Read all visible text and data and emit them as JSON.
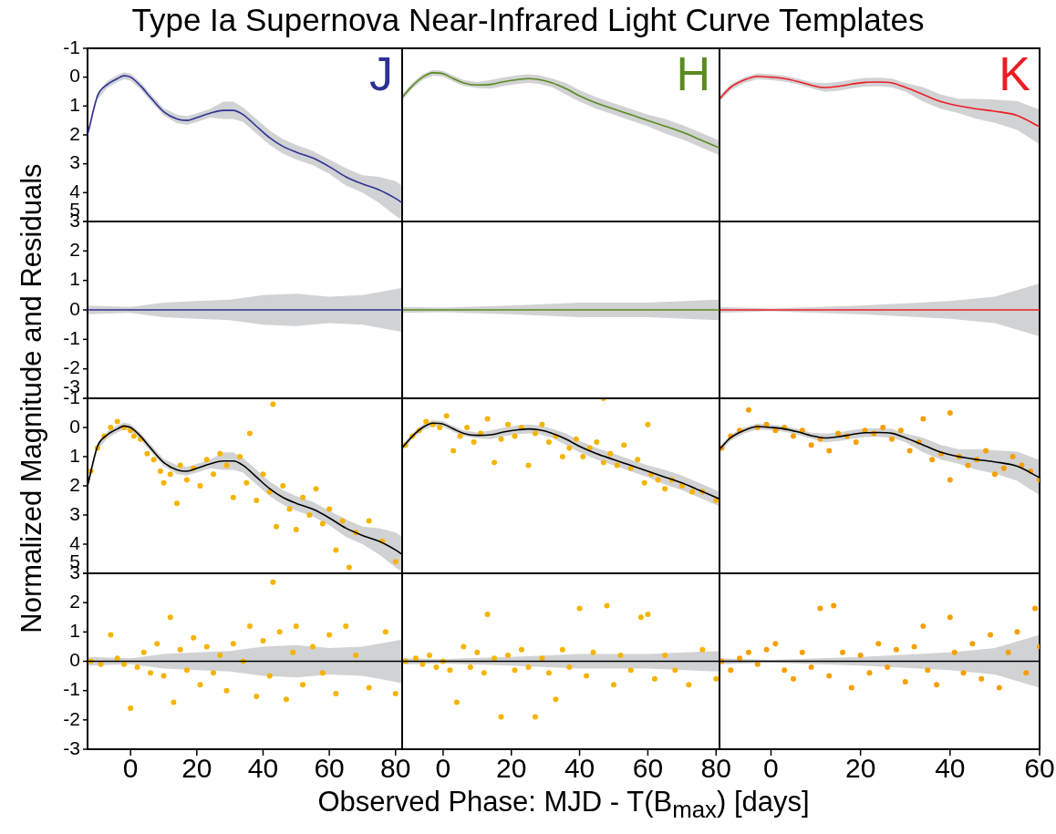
{
  "chart_data": [
    {
      "type": "line",
      "title": "Type Ia Supernova Near-Infrared Light Curve Templates",
      "xlabel": "Observed Phase: MJD - T(B$_{max}$) [days]",
      "ylabel": "Normalized Magnitude and Residuals",
      "xlim": [
        -13,
        82
      ],
      "ylim": [
        5,
        -1
      ],
      "xticks": [
        0,
        20,
        40,
        60,
        80
      ],
      "yticks": [
        -1,
        0,
        1,
        2,
        3,
        4,
        5
      ],
      "tick_labels": "y",
      "series": [
        {
          "name": "J",
          "color": "#2e3192",
          "x": [
            -13,
            -10,
            -7,
            -4,
            -2,
            0,
            3,
            6,
            10,
            14,
            17,
            20,
            24,
            28,
            31,
            34,
            38,
            42,
            46,
            50,
            55,
            60,
            65,
            70,
            75,
            80,
            82
          ],
          "values": [
            2.0,
            0.65,
            0.25,
            0.05,
            -0.05,
            0.0,
            0.3,
            0.7,
            1.2,
            1.45,
            1.5,
            1.4,
            1.25,
            1.15,
            1.15,
            1.3,
            1.7,
            2.1,
            2.4,
            2.6,
            2.8,
            3.1,
            3.45,
            3.7,
            3.9,
            4.2,
            4.35
          ],
          "lower": [
            1.88,
            0.53,
            0.13,
            -0.07,
            -0.17,
            -0.12,
            0.18,
            0.58,
            1.08,
            1.3,
            1.35,
            1.25,
            1.1,
            0.85,
            0.85,
            1.05,
            1.45,
            1.85,
            2.15,
            2.35,
            2.55,
            2.85,
            3.15,
            3.4,
            3.45,
            3.6,
            3.75
          ],
          "upper": [
            2.12,
            0.77,
            0.37,
            0.17,
            0.07,
            0.12,
            0.42,
            0.82,
            1.32,
            1.6,
            1.65,
            1.55,
            1.4,
            1.45,
            1.45,
            1.55,
            1.95,
            2.35,
            2.65,
            2.85,
            3.05,
            3.35,
            3.75,
            4.0,
            4.35,
            4.8,
            4.95
          ]
        }
      ]
    },
    {
      "type": "line",
      "xlim": [
        -12,
        81
      ],
      "ylim": [
        5,
        -1
      ],
      "xticks": [
        0,
        20,
        40,
        60,
        80
      ],
      "yticks": [
        -1,
        0,
        1,
        2,
        3,
        4,
        5
      ],
      "tick_labels": false,
      "series": [
        {
          "name": "H",
          "color": "#5a8a1e",
          "x": [
            -12,
            -9,
            -6,
            -3,
            0,
            3,
            6,
            10,
            14,
            18,
            22,
            25,
            28,
            32,
            36,
            40,
            45,
            50,
            55,
            60,
            65,
            70,
            75,
            81
          ],
          "values": [
            0.7,
            0.3,
            0.0,
            -0.15,
            -0.12,
            0.05,
            0.2,
            0.27,
            0.25,
            0.15,
            0.08,
            0.05,
            0.08,
            0.2,
            0.4,
            0.65,
            0.9,
            1.1,
            1.3,
            1.5,
            1.7,
            1.9,
            2.15,
            2.45
          ],
          "lower": [
            0.6,
            0.2,
            -0.1,
            -0.25,
            -0.22,
            -0.05,
            0.1,
            0.17,
            0.1,
            0.0,
            -0.07,
            -0.1,
            -0.07,
            0.05,
            0.2,
            0.45,
            0.7,
            0.9,
            1.1,
            1.3,
            1.45,
            1.65,
            1.9,
            2.2
          ],
          "upper": [
            0.8,
            0.4,
            0.1,
            -0.05,
            -0.02,
            0.15,
            0.3,
            0.37,
            0.4,
            0.3,
            0.23,
            0.2,
            0.23,
            0.35,
            0.6,
            0.85,
            1.1,
            1.3,
            1.5,
            1.7,
            1.95,
            2.15,
            2.4,
            2.7
          ]
        }
      ]
    },
    {
      "type": "line",
      "xlim": [
        -11.5,
        60
      ],
      "ylim": [
        5,
        -1
      ],
      "xticks": [
        0,
        20,
        40,
        60
      ],
      "yticks": [
        -1,
        0,
        1,
        2,
        3,
        4,
        5
      ],
      "tick_labels": false,
      "series": [
        {
          "name": "K",
          "color": "#ed1c24",
          "x": [
            -11.5,
            -9,
            -6,
            -3,
            0,
            3,
            6,
            9,
            12,
            15,
            18,
            21,
            24,
            27,
            30,
            34,
            38,
            42,
            46,
            50,
            55,
            60
          ],
          "values": [
            0.75,
            0.35,
            0.1,
            -0.03,
            0.0,
            0.05,
            0.15,
            0.28,
            0.36,
            0.32,
            0.24,
            0.18,
            0.17,
            0.2,
            0.35,
            0.6,
            0.85,
            1.0,
            1.1,
            1.18,
            1.33,
            1.72
          ],
          "lower": [
            0.65,
            0.25,
            0.0,
            -0.13,
            -0.1,
            -0.05,
            0.05,
            0.18,
            0.21,
            0.17,
            0.09,
            0.03,
            0.02,
            0.05,
            0.2,
            0.35,
            0.6,
            0.75,
            0.75,
            0.78,
            0.83,
            1.12
          ],
          "upper": [
            0.85,
            0.45,
            0.2,
            0.07,
            0.1,
            0.15,
            0.25,
            0.38,
            0.51,
            0.47,
            0.39,
            0.33,
            0.32,
            0.35,
            0.5,
            0.85,
            1.1,
            1.25,
            1.45,
            1.58,
            1.83,
            2.32
          ]
        }
      ]
    },
    {
      "type": "line",
      "xlim": [
        -13,
        82
      ],
      "ylim": [
        -3,
        3
      ],
      "xticks": [
        0,
        20,
        40,
        60,
        80
      ],
      "yticks": [
        -3,
        -2,
        -1,
        0,
        1,
        2,
        3
      ],
      "tick_labels": "y",
      "series": [
        {
          "color": "#2e3192",
          "x": [
            -13,
            0,
            10,
            20,
            30,
            40,
            50,
            60,
            70,
            80,
            82
          ],
          "values": [
            0,
            0,
            0,
            0,
            0,
            0,
            0,
            0,
            0,
            0,
            0
          ],
          "lower": [
            -0.15,
            -0.1,
            -0.25,
            -0.3,
            -0.35,
            -0.5,
            -0.55,
            -0.45,
            -0.5,
            -0.7,
            -0.75
          ],
          "upper": [
            0.15,
            0.1,
            0.25,
            0.3,
            0.35,
            0.5,
            0.55,
            0.45,
            0.5,
            0.7,
            0.75
          ]
        }
      ]
    },
    {
      "type": "line",
      "xlim": [
        -12,
        81
      ],
      "ylim": [
        -3,
        3
      ],
      "xticks": [
        0,
        20,
        40,
        60,
        80
      ],
      "yticks": [
        -3,
        -2,
        -1,
        0,
        1,
        2,
        3
      ],
      "tick_labels": false,
      "series": [
        {
          "color": "#5a8a1e",
          "x": [
            -12,
            0,
            20,
            40,
            60,
            81
          ],
          "values": [
            0,
            0,
            0,
            0,
            0,
            0
          ],
          "lower": [
            -0.1,
            -0.08,
            -0.15,
            -0.25,
            -0.25,
            -0.35
          ],
          "upper": [
            0.1,
            0.08,
            0.15,
            0.25,
            0.25,
            0.35
          ]
        }
      ]
    },
    {
      "type": "line",
      "xlim": [
        -11.5,
        60
      ],
      "ylim": [
        -3,
        3
      ],
      "xticks": [
        0,
        20,
        40,
        60
      ],
      "yticks": [
        -3,
        -2,
        -1,
        0,
        1,
        2,
        3
      ],
      "tick_labels": false,
      "series": [
        {
          "color": "#ed1c24",
          "x": [
            -11.5,
            0,
            20,
            40,
            50,
            60
          ],
          "values": [
            0,
            0,
            0,
            0,
            0,
            0
          ],
          "lower": [
            -0.1,
            -0.05,
            -0.15,
            -0.3,
            -0.45,
            -0.9
          ],
          "upper": [
            0.1,
            0.05,
            0.15,
            0.3,
            0.45,
            0.9
          ]
        }
      ]
    },
    {
      "type": "line",
      "xlim": [
        -13,
        82
      ],
      "ylim": [
        5,
        -1
      ],
      "xticks": [
        0,
        20,
        40,
        60,
        80
      ],
      "yticks": [
        -1,
        0,
        1,
        2,
        3,
        4,
        5
      ],
      "tick_labels": "y",
      "series": [
        {
          "type": "scatter",
          "marker": "circle",
          "color": "#f5b400",
          "x": [
            -12,
            -10,
            -8,
            -6,
            -4,
            -2,
            0,
            1,
            3,
            5,
            7,
            9,
            10,
            12,
            14,
            15,
            17,
            19,
            21,
            23,
            25,
            27,
            29,
            31,
            33,
            35,
            36,
            38,
            40,
            42,
            44,
            46,
            48,
            50,
            52,
            54,
            56,
            58,
            60,
            62,
            64,
            66,
            68,
            72,
            76,
            80,
            43
          ],
          "values": [
            1.5,
            0.7,
            0.3,
            0.0,
            -0.2,
            0.0,
            0.1,
            0.3,
            0.4,
            0.9,
            1.1,
            1.5,
            1.9,
            1.6,
            2.6,
            1.3,
            1.8,
            1.4,
            2.0,
            1.1,
            1.6,
            0.9,
            1.3,
            2.4,
            1.0,
            1.9,
            0.2,
            2.5,
            1.6,
            2.2,
            3.4,
            2.0,
            2.8,
            3.5,
            2.4,
            3.0,
            2.1,
            3.3,
            2.8,
            4.2,
            3.2,
            4.8,
            3.6,
            3.2,
            3.9,
            4.6,
            -0.8
          ]
        },
        {
          "color": "#000000",
          "x": [
            -13,
            -10,
            -7,
            -4,
            -2,
            0,
            3,
            6,
            10,
            14,
            17,
            20,
            24,
            28,
            31,
            34,
            38,
            42,
            46,
            50,
            55,
            60,
            65,
            70,
            75,
            80,
            82
          ],
          "values": [
            2.0,
            0.65,
            0.25,
            0.05,
            -0.05,
            0.0,
            0.3,
            0.7,
            1.2,
            1.45,
            1.5,
            1.4,
            1.25,
            1.15,
            1.15,
            1.3,
            1.7,
            2.1,
            2.4,
            2.6,
            2.8,
            3.1,
            3.45,
            3.7,
            3.9,
            4.2,
            4.35
          ],
          "lower": [
            1.88,
            0.53,
            0.13,
            -0.07,
            -0.17,
            -0.12,
            0.18,
            0.58,
            1.08,
            1.3,
            1.35,
            1.25,
            1.1,
            0.85,
            0.85,
            1.05,
            1.45,
            1.85,
            2.15,
            2.35,
            2.55,
            2.85,
            3.15,
            3.4,
            3.45,
            3.6,
            3.75
          ],
          "upper": [
            2.12,
            0.77,
            0.37,
            0.17,
            0.07,
            0.12,
            0.42,
            0.82,
            1.32,
            1.6,
            1.65,
            1.55,
            1.4,
            1.45,
            1.45,
            1.55,
            1.95,
            2.35,
            2.65,
            2.85,
            3.05,
            3.35,
            3.75,
            4.0,
            4.35,
            4.8,
            4.95
          ]
        }
      ]
    },
    {
      "type": "line",
      "xlim": [
        -12,
        81
      ],
      "ylim": [
        5,
        -1
      ],
      "xticks": [
        0,
        20,
        40,
        60,
        80
      ],
      "yticks": [
        -1,
        0,
        1,
        2,
        3,
        4,
        5
      ],
      "tick_labels": false,
      "series": [
        {
          "type": "scatter",
          "marker": "circle",
          "color": "#f5b400",
          "x": [
            -11,
            -9,
            -7,
            -5,
            -3,
            -1,
            1,
            3,
            5,
            7,
            9,
            11,
            13,
            15,
            17,
            19,
            21,
            23,
            25,
            27,
            29,
            31,
            33,
            35,
            37,
            39,
            41,
            43,
            45,
            47,
            49,
            51,
            53,
            55,
            57,
            59,
            61,
            63,
            65,
            67,
            70,
            73,
            76,
            80,
            47,
            60
          ],
          "values": [
            0.6,
            0.3,
            0.1,
            -0.2,
            -0.1,
            0.0,
            -0.4,
            0.8,
            0.3,
            0.0,
            0.5,
            0.2,
            -0.3,
            1.2,
            0.4,
            -0.1,
            0.3,
            0.0,
            1.3,
            0.2,
            -0.1,
            0.5,
            0.3,
            1.0,
            0.7,
            0.4,
            1.0,
            0.7,
            0.5,
            1.2,
            0.9,
            1.3,
            0.6,
            1.4,
            1.1,
            1.9,
            1.6,
            1.8,
            2.1,
            1.8,
            2.0,
            2.2,
            2.2,
            2.5,
            -1.0,
            -0.1
          ]
        },
        {
          "color": "#000000",
          "x": [
            -12,
            -9,
            -6,
            -3,
            0,
            3,
            6,
            10,
            14,
            18,
            22,
            25,
            28,
            32,
            36,
            40,
            45,
            50,
            55,
            60,
            65,
            70,
            75,
            81
          ],
          "values": [
            0.7,
            0.3,
            0.0,
            -0.15,
            -0.12,
            0.05,
            0.2,
            0.27,
            0.25,
            0.15,
            0.08,
            0.05,
            0.08,
            0.2,
            0.4,
            0.65,
            0.9,
            1.1,
            1.3,
            1.5,
            1.7,
            1.9,
            2.15,
            2.45
          ],
          "lower": [
            0.6,
            0.2,
            -0.1,
            -0.25,
            -0.22,
            -0.05,
            0.1,
            0.17,
            0.1,
            0.0,
            -0.07,
            -0.1,
            -0.07,
            0.05,
            0.2,
            0.45,
            0.7,
            0.9,
            1.1,
            1.3,
            1.45,
            1.65,
            1.9,
            2.2
          ],
          "upper": [
            0.8,
            0.4,
            0.1,
            -0.05,
            -0.02,
            0.15,
            0.3,
            0.37,
            0.4,
            0.3,
            0.23,
            0.2,
            0.23,
            0.35,
            0.6,
            0.85,
            1.1,
            1.3,
            1.5,
            1.7,
            1.95,
            2.15,
            2.4,
            2.7
          ]
        }
      ]
    },
    {
      "type": "line",
      "xlim": [
        -11.5,
        60
      ],
      "ylim": [
        5,
        -1
      ],
      "xticks": [
        0,
        20,
        40,
        60
      ],
      "yticks": [
        -1,
        0,
        1,
        2,
        3,
        4,
        5
      ],
      "tick_labels": false,
      "series": [
        {
          "type": "scatter",
          "marker": "circle",
          "color": "#f5a000",
          "x": [
            -11,
            -9,
            -7,
            -5,
            -3,
            -1,
            1,
            3,
            5,
            7,
            9,
            11,
            13,
            15,
            17,
            19,
            21,
            23,
            25,
            27,
            29,
            31,
            33,
            34,
            36,
            38,
            40,
            40,
            42,
            44,
            46,
            48,
            50,
            52,
            54,
            56,
            58,
            60
          ],
          "values": [
            0.7,
            0.3,
            0.1,
            -0.6,
            0.0,
            -0.1,
            0.1,
            0.0,
            0.3,
            0.1,
            0.6,
            0.4,
            0.8,
            0.2,
            0.3,
            0.5,
            0.1,
            0.2,
            0.0,
            0.4,
            0.1,
            0.8,
            0.5,
            -0.3,
            1.1,
            0.9,
            1.8,
            -0.5,
            1.0,
            1.3,
            1.1,
            0.8,
            1.6,
            1.4,
            1.0,
            1.3,
            1.5,
            1.8
          ]
        },
        {
          "color": "#000000",
          "x": [
            -11.5,
            -9,
            -6,
            -3,
            0,
            3,
            6,
            9,
            12,
            15,
            18,
            21,
            24,
            27,
            30,
            34,
            38,
            42,
            46,
            50,
            55,
            60
          ],
          "values": [
            0.75,
            0.35,
            0.1,
            -0.03,
            0.0,
            0.05,
            0.15,
            0.28,
            0.36,
            0.32,
            0.24,
            0.18,
            0.17,
            0.2,
            0.35,
            0.6,
            0.85,
            1.0,
            1.1,
            1.18,
            1.33,
            1.72
          ],
          "lower": [
            0.65,
            0.25,
            0.0,
            -0.13,
            -0.1,
            -0.05,
            0.05,
            0.18,
            0.21,
            0.17,
            0.09,
            0.03,
            0.02,
            0.05,
            0.2,
            0.35,
            0.6,
            0.75,
            0.75,
            0.78,
            0.83,
            1.12
          ],
          "upper": [
            0.85,
            0.45,
            0.2,
            0.07,
            0.1,
            0.15,
            0.25,
            0.38,
            0.51,
            0.47,
            0.39,
            0.33,
            0.32,
            0.35,
            0.5,
            0.85,
            1.1,
            1.25,
            1.45,
            1.58,
            1.83,
            2.32
          ]
        }
      ]
    },
    {
      "type": "line",
      "xlim": [
        -13,
        82
      ],
      "ylim": [
        -3,
        3
      ],
      "xticks": [
        0,
        20,
        40,
        60,
        80
      ],
      "yticks": [
        -3,
        -2,
        -1,
        0,
        1,
        2,
        3
      ],
      "series": [
        {
          "type": "scatter",
          "marker": "circle",
          "color": "#f5b400",
          "x": [
            -12,
            -9,
            -6,
            -4,
            -2,
            0,
            2,
            4,
            6,
            8,
            10,
            12,
            13,
            15,
            17,
            19,
            21,
            23,
            25,
            27,
            29,
            31,
            34,
            36,
            38,
            40,
            42,
            43,
            45,
            47,
            49,
            50,
            52,
            55,
            58,
            60,
            62,
            65,
            68,
            72,
            77,
            80
          ],
          "values": [
            0.0,
            -0.1,
            0.9,
            0.1,
            -0.1,
            -1.6,
            -0.2,
            0.3,
            -0.4,
            0.6,
            -0.5,
            1.5,
            -1.4,
            0.4,
            -0.3,
            0.8,
            -0.8,
            0.5,
            -0.4,
            0.2,
            -1.0,
            0.6,
            0.0,
            1.2,
            -1.2,
            0.7,
            -0.5,
            2.7,
            1.0,
            -1.3,
            0.3,
            1.2,
            -0.8,
            0.5,
            -0.4,
            0.9,
            -1.1,
            1.2,
            0.2,
            -0.9,
            1.0,
            -1.1
          ]
        },
        {
          "color": "#000000",
          "x": [
            -13,
            0,
            10,
            20,
            30,
            40,
            50,
            60,
            70,
            80,
            82
          ],
          "values": [
            0,
            0,
            0,
            0,
            0,
            0,
            0,
            0,
            0,
            0,
            0
          ],
          "lower": [
            -0.15,
            -0.1,
            -0.25,
            -0.3,
            -0.35,
            -0.5,
            -0.55,
            -0.45,
            -0.5,
            -0.7,
            -0.75
          ],
          "upper": [
            0.15,
            0.1,
            0.25,
            0.3,
            0.35,
            0.5,
            0.55,
            0.45,
            0.5,
            0.7,
            0.75
          ]
        }
      ]
    },
    {
      "type": "line",
      "xlim": [
        -12,
        81
      ],
      "ylim": [
        -3,
        3
      ],
      "xticks": [
        0,
        20,
        40,
        60,
        80
      ],
      "yticks": [
        -3,
        -2,
        -1,
        0,
        1,
        2,
        3
      ],
      "tick_labels": "x",
      "series": [
        {
          "type": "scatter",
          "marker": "circle",
          "color": "#f5b400",
          "x": [
            -11,
            -8,
            -6,
            -4,
            -2,
            0,
            2,
            4,
            6,
            8,
            10,
            12,
            13,
            15,
            17,
            19,
            21,
            23,
            25,
            27,
            29,
            31,
            33,
            35,
            37,
            40,
            42,
            44,
            48,
            50,
            52,
            55,
            58,
            60,
            62,
            65,
            68,
            72,
            76,
            80
          ],
          "values": [
            0.0,
            0.1,
            -0.1,
            0.2,
            -0.2,
            0.0,
            -0.3,
            -1.4,
            0.5,
            -0.2,
            0.3,
            -0.4,
            1.6,
            0.1,
            -1.9,
            0.2,
            -0.3,
            0.4,
            -0.2,
            -1.9,
            0.1,
            -0.4,
            -1.3,
            0.4,
            -0.2,
            1.8,
            -0.5,
            0.3,
            1.9,
            -0.8,
            0.2,
            -0.3,
            1.5,
            1.6,
            -0.6,
            0.2,
            -0.3,
            -0.8,
            0.4,
            -0.6
          ]
        },
        {
          "color": "#000000",
          "x": [
            -12,
            0,
            20,
            40,
            60,
            81
          ],
          "values": [
            0,
            0,
            0,
            0,
            0,
            0
          ],
          "lower": [
            -0.1,
            -0.08,
            -0.15,
            -0.25,
            -0.25,
            -0.35
          ],
          "upper": [
            0.1,
            0.08,
            0.15,
            0.25,
            0.25,
            0.35
          ]
        }
      ]
    },
    {
      "type": "line",
      "xlim": [
        -11.5,
        60
      ],
      "ylim": [
        -3,
        3
      ],
      "xticks": [
        0,
        20,
        40,
        60
      ],
      "yticks": [
        -3,
        -2,
        -1,
        0,
        1,
        2,
        3
      ],
      "tick_labels": "x",
      "series": [
        {
          "type": "scatter",
          "marker": "circle",
          "color": "#f5a000",
          "x": [
            -11,
            -9,
            -7,
            -5,
            -3,
            -1,
            1,
            3,
            5,
            7,
            9,
            11,
            13,
            14,
            16,
            18,
            20,
            22,
            24,
            26,
            28,
            30,
            32,
            34,
            35,
            37,
            40,
            41,
            43,
            45,
            47,
            49,
            51,
            53,
            55,
            57,
            59,
            60
          ],
          "values": [
            0.0,
            -0.3,
            0.1,
            0.3,
            -0.1,
            0.4,
            0.6,
            -0.3,
            -0.6,
            0.3,
            -0.2,
            1.8,
            -0.5,
            1.9,
            0.3,
            -0.9,
            0.2,
            -0.4,
            0.6,
            -0.2,
            0.4,
            -0.7,
            0.5,
            1.2,
            -0.3,
            -0.8,
            1.5,
            0.3,
            -0.4,
            0.6,
            -0.6,
            0.9,
            -0.9,
            0.3,
            1.0,
            -0.4,
            1.8,
            0.5
          ]
        },
        {
          "color": "#000000",
          "x": [
            -11.5,
            0,
            20,
            40,
            50,
            60
          ],
          "values": [
            0,
            0,
            0,
            0,
            0,
            0
          ],
          "lower": [
            -0.1,
            -0.05,
            -0.15,
            -0.3,
            -0.45,
            -0.9
          ],
          "upper": [
            0.1,
            0.05,
            0.15,
            0.3,
            0.45,
            0.9
          ]
        }
      ]
    }
  ]
}
